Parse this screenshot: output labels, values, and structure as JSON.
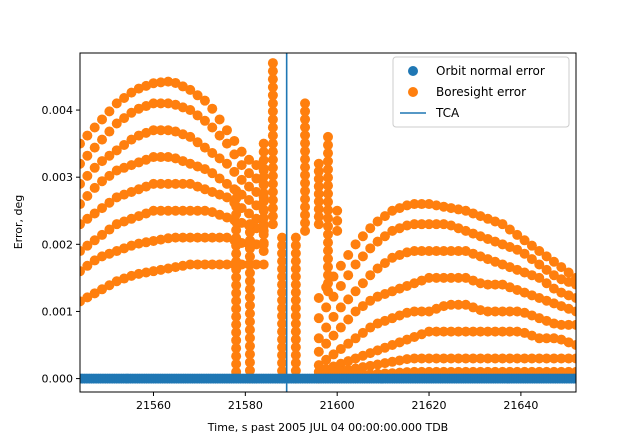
{
  "chart_data": {
    "type": "scatter",
    "title": "",
    "xlabel": "Time, s past 2005 JUL 04 00:00:00.000 TDB",
    "ylabel": "Error, deg",
    "xlim": [
      21544,
      21652
    ],
    "ylim": [
      -0.0002,
      0.00485
    ],
    "xticks": [
      21560,
      21580,
      21600,
      21620,
      21640
    ],
    "yticks": [
      0.0,
      0.001,
      0.002,
      0.003,
      0.004
    ],
    "xtick_labels": [
      "21560",
      "21580",
      "21600",
      "21620",
      "21640"
    ],
    "ytick_labels": [
      "0.000",
      "0.001",
      "0.002",
      "0.003",
      "0.004"
    ],
    "grid": false,
    "legend_position": "top-right",
    "tca": {
      "name": "TCA",
      "x": 21589,
      "color": "#1f77b4"
    },
    "series": [
      {
        "name": "Orbit normal error",
        "color": "#1f77b4",
        "x": [
          21544,
          21548,
          21552,
          21556,
          21560,
          21564,
          21568,
          21572,
          21576,
          21580,
          21584,
          21588,
          21592,
          21596,
          21600,
          21604,
          21608,
          21612,
          21616,
          21620,
          21624,
          21628,
          21632,
          21636,
          21640,
          21644,
          21648,
          21652
        ],
        "y": [
          0.0,
          0.0,
          0.0,
          0.0,
          0.0,
          0.0,
          0.0,
          0.0,
          0.0,
          0.0,
          0.0,
          0.0,
          0.0,
          0.0,
          0.0,
          0.0,
          0.0,
          0.0,
          0.0,
          0.0,
          0.0,
          0.0,
          0.0,
          0.0,
          0.0,
          0.0,
          0.0,
          0.0
        ]
      },
      {
        "name": "Boresight error",
        "color": "#ff7f0e",
        "envelopes": [
          {
            "x": [
              21544,
              21548,
              21552,
              21556,
              21560,
              21564,
              21568,
              21572,
              21576,
              21580,
              21584
            ],
            "y": [
              0.0035,
              0.0038,
              0.0041,
              0.0043,
              0.0044,
              0.00443,
              0.0043,
              0.0041,
              0.0037,
              0.0033,
              0.0031
            ]
          },
          {
            "x": [
              21544,
              21548,
              21552,
              21556,
              21560,
              21564,
              21568,
              21572,
              21576,
              21580,
              21584
            ],
            "y": [
              0.0032,
              0.0035,
              0.0038,
              0.004,
              0.0041,
              0.0041,
              0.004,
              0.0038,
              0.0035,
              0.0031,
              0.0029
            ]
          },
          {
            "x": [
              21544,
              21548,
              21552,
              21556,
              21560,
              21564,
              21568,
              21572,
              21576,
              21580,
              21584
            ],
            "y": [
              0.0029,
              0.0032,
              0.0034,
              0.0036,
              0.0037,
              0.0037,
              0.0036,
              0.0034,
              0.0032,
              0.0029,
              0.0027
            ]
          },
          {
            "x": [
              21544,
              21548,
              21552,
              21556,
              21560,
              21564,
              21568,
              21572,
              21576,
              21580,
              21584
            ],
            "y": [
              0.0026,
              0.0029,
              0.0031,
              0.0032,
              0.0033,
              0.0033,
              0.0032,
              0.0031,
              0.0029,
              0.0027,
              0.0025
            ]
          },
          {
            "x": [
              21544,
              21548,
              21552,
              21556,
              21560,
              21564,
              21568,
              21572,
              21576,
              21580,
              21584
            ],
            "y": [
              0.0023,
              0.0025,
              0.0027,
              0.0028,
              0.0029,
              0.0029,
              0.0029,
              0.0028,
              0.0027,
              0.0025,
              0.0023
            ]
          },
          {
            "x": [
              21544,
              21548,
              21552,
              21556,
              21560,
              21564,
              21568,
              21572,
              21576,
              21580,
              21584
            ],
            "y": [
              0.0019,
              0.0021,
              0.0023,
              0.0024,
              0.0025,
              0.0025,
              0.0025,
              0.0025,
              0.0024,
              0.0023,
              0.0022
            ]
          },
          {
            "x": [
              21544,
              21548,
              21552,
              21556,
              21560,
              21564,
              21568,
              21572,
              21576,
              21580,
              21584
            ],
            "y": [
              0.0016,
              0.0018,
              0.0019,
              0.002,
              0.00205,
              0.0021,
              0.0021,
              0.0021,
              0.0021,
              0.002,
              0.002
            ]
          },
          {
            "x": [
              21544,
              21548,
              21552,
              21556,
              21560,
              21564,
              21568,
              21572,
              21576,
              21580,
              21584
            ],
            "y": [
              0.00115,
              0.0013,
              0.00145,
              0.00155,
              0.0016,
              0.00165,
              0.0017,
              0.0017,
              0.0017,
              0.0017,
              0.0017
            ]
          },
          {
            "x": [
              21596,
              21600,
              21604,
              21608,
              21612,
              21616,
              21620,
              21624,
              21628,
              21632,
              21636,
              21640,
              21644,
              21648,
              21652
            ],
            "y": [
              0.0012,
              0.0016,
              0.002,
              0.0023,
              0.0025,
              0.0026,
              0.0026,
              0.00255,
              0.0025,
              0.0024,
              0.0023,
              0.0021,
              0.0019,
              0.0017,
              0.0015
            ]
          },
          {
            "x": [
              21596,
              21600,
              21604,
              21608,
              21612,
              21616,
              21620,
              21624,
              21628,
              21632,
              21636,
              21640,
              21644,
              21648,
              21652
            ],
            "y": [
              0.0009,
              0.0013,
              0.0017,
              0.002,
              0.0022,
              0.0023,
              0.0023,
              0.0023,
              0.0022,
              0.0021,
              0.002,
              0.0019,
              0.0017,
              0.0015,
              0.0014
            ]
          },
          {
            "x": [
              21596,
              21600,
              21604,
              21608,
              21612,
              21616,
              21620,
              21624,
              21628,
              21632,
              21636,
              21640,
              21644,
              21648,
              21652
            ],
            "y": [
              0.0006,
              0.001,
              0.0013,
              0.0016,
              0.0018,
              0.0019,
              0.0019,
              0.0019,
              0.0019,
              0.0018,
              0.0017,
              0.0016,
              0.0015,
              0.0013,
              0.0012
            ]
          },
          {
            "x": [
              21596,
              21600,
              21604,
              21608,
              21612,
              21616,
              21620,
              21624,
              21628,
              21632,
              21636,
              21640,
              21644,
              21648,
              21652
            ],
            "y": [
              0.0004,
              0.0007,
              0.001,
              0.0012,
              0.0013,
              0.0014,
              0.0015,
              0.0015,
              0.0015,
              0.0014,
              0.0014,
              0.0013,
              0.0012,
              0.0011,
              0.001
            ]
          },
          {
            "x": [
              21596,
              21600,
              21604,
              21608,
              21612,
              21616,
              21620,
              21624,
              21628,
              21632,
              21636,
              21640,
              21644,
              21648,
              21652
            ],
            "y": [
              0.0002,
              0.0004,
              0.0006,
              0.0008,
              0.0009,
              0.001,
              0.001,
              0.0011,
              0.0011,
              0.001,
              0.001,
              0.001,
              0.0009,
              0.0008,
              0.0008
            ]
          },
          {
            "x": [
              21596,
              21600,
              21604,
              21608,
              21612,
              21616,
              21620,
              21624,
              21628,
              21632,
              21636,
              21640,
              21644,
              21648,
              21652
            ],
            "y": [
              0.0001,
              0.0002,
              0.0003,
              0.0004,
              0.0005,
              0.0006,
              0.0007,
              0.0007,
              0.0007,
              0.0007,
              0.0007,
              0.0007,
              0.0006,
              0.0006,
              0.0005
            ]
          },
          {
            "x": [
              21596,
              21600,
              21604,
              21608,
              21612,
              21616,
              21620,
              21624,
              21628,
              21632,
              21636,
              21640,
              21644,
              21648,
              21652
            ],
            "y": [
              5e-05,
              0.0001,
              0.00015,
              0.0002,
              0.00025,
              0.0003,
              0.0003,
              0.0003,
              0.0003,
              0.0003,
              0.0003,
              0.0003,
              0.0003,
              0.0003,
              0.0003
            ]
          },
          {
            "x": [
              21596,
              21600,
              21604,
              21608,
              21612,
              21616,
              21620,
              21624,
              21628,
              21632,
              21636,
              21640,
              21644,
              21648,
              21652
            ],
            "y": [
              0.0,
              3e-05,
              5e-05,
              7e-05,
              8e-05,
              0.0001,
              0.0001,
              0.0001,
              0.0001,
              0.0001,
              0.0001,
              0.0001,
              0.0001,
              0.0001,
              0.0001
            ]
          }
        ],
        "columns": [
          {
            "x": 21578,
            "ymin": 0.0001,
            "ymax": 0.0028
          },
          {
            "x": 21581,
            "ymin": 0.0,
            "ymax": 0.0023
          },
          {
            "x": 21584,
            "ymin": 0.0019,
            "ymax": 0.0035
          },
          {
            "x": 21586,
            "ymin": 0.0023,
            "ymax": 0.0047
          },
          {
            "x": 21588,
            "ymin": 0.0,
            "ymax": 0.0021
          },
          {
            "x": 21591,
            "ymin": 0.0,
            "ymax": 0.0021
          },
          {
            "x": 21593,
            "ymin": 0.0022,
            "ymax": 0.0041
          },
          {
            "x": 21596,
            "ymin": 0.0023,
            "ymax": 0.0032
          },
          {
            "x": 21598,
            "ymin": 0.0013,
            "ymax": 0.0036
          },
          {
            "x": 21600,
            "ymin": 0.0022,
            "ymax": 0.0025
          }
        ]
      }
    ]
  }
}
